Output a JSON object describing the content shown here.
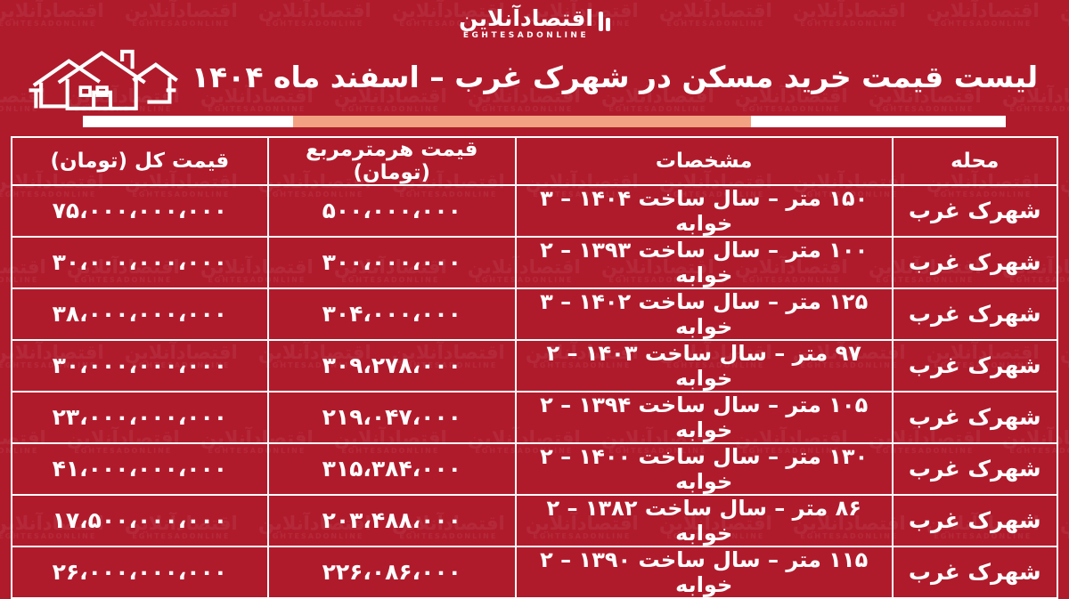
{
  "page": {
    "background_color": "#b01b2c",
    "accent_salmon": "#f2a282",
    "text_color": "#ffffff"
  },
  "logo": {
    "name_fa": "اقتصادآنلاین",
    "name_en": "EGHTESADONLINE"
  },
  "header": {
    "title": "لیست قیمت خرید مسکن در شهرک غرب – اسفند ماه ۱۴۰۴"
  },
  "watermark": {
    "text_fa": "اقتصادآنلاین",
    "text_en": "EGHTESADONLINE"
  },
  "chart_data": {
    "type": "table",
    "title": "لیست قیمت خرید مسکن در شهرک غرب – اسفند ماه ۱۴۰۴",
    "columns": [
      "محله",
      "مشخصات",
      "قیمت هرمترمربع (تومان)",
      "قیمت کل (تومان)"
    ],
    "rows": [
      [
        "شهرک غرب",
        "۱۵۰ متر – سال ساخت ۱۴۰۴ – ۳ خوابه",
        "۵۰۰،۰۰۰،۰۰۰",
        "۷۵،۰۰۰،۰۰۰،۰۰۰"
      ],
      [
        "شهرک غرب",
        "۱۰۰ متر – سال ساخت ۱۳۹۳ – ۲ خوابه",
        "۳۰۰،۰۰۰،۰۰۰",
        "۳۰،۰۰۰،۰۰۰،۰۰۰"
      ],
      [
        "شهرک غرب",
        "۱۲۵ متر – سال ساخت ۱۴۰۲ – ۳ خوابه",
        "۳۰۴،۰۰۰،۰۰۰",
        "۳۸،۰۰۰،۰۰۰،۰۰۰"
      ],
      [
        "شهرک غرب",
        "۹۷ متر – سال ساخت ۱۴۰۳ – ۲ خوابه",
        "۳۰۹،۲۷۸،۰۰۰",
        "۳۰،۰۰۰،۰۰۰،۰۰۰"
      ],
      [
        "شهرک غرب",
        "۱۰۵ متر – سال ساخت ۱۳۹۴ – ۲ خوابه",
        "۲۱۹،۰۴۷،۰۰۰",
        "۲۳،۰۰۰،۰۰۰،۰۰۰"
      ],
      [
        "شهرک غرب",
        "۱۳۰ متر – سال ساخت ۱۴۰۰ – ۲ خوابه",
        "۳۱۵،۳۸۴،۰۰۰",
        "۴۱،۰۰۰،۰۰۰،۰۰۰"
      ],
      [
        "شهرک غرب",
        "۸۶ متر – سال ساخت ۱۳۸۲ – ۲ خوابه",
        "۲۰۳،۴۸۸،۰۰۰",
        "۱۷،۵۰۰،۰۰۰،۰۰۰"
      ],
      [
        "شهرک غرب",
        "۱۱۵ متر – سال ساخت ۱۳۹۰ – ۲ خوابه",
        "۲۲۶،۰۸۶،۰۰۰",
        "۲۶،۰۰۰،۰۰۰،۰۰۰"
      ]
    ]
  }
}
